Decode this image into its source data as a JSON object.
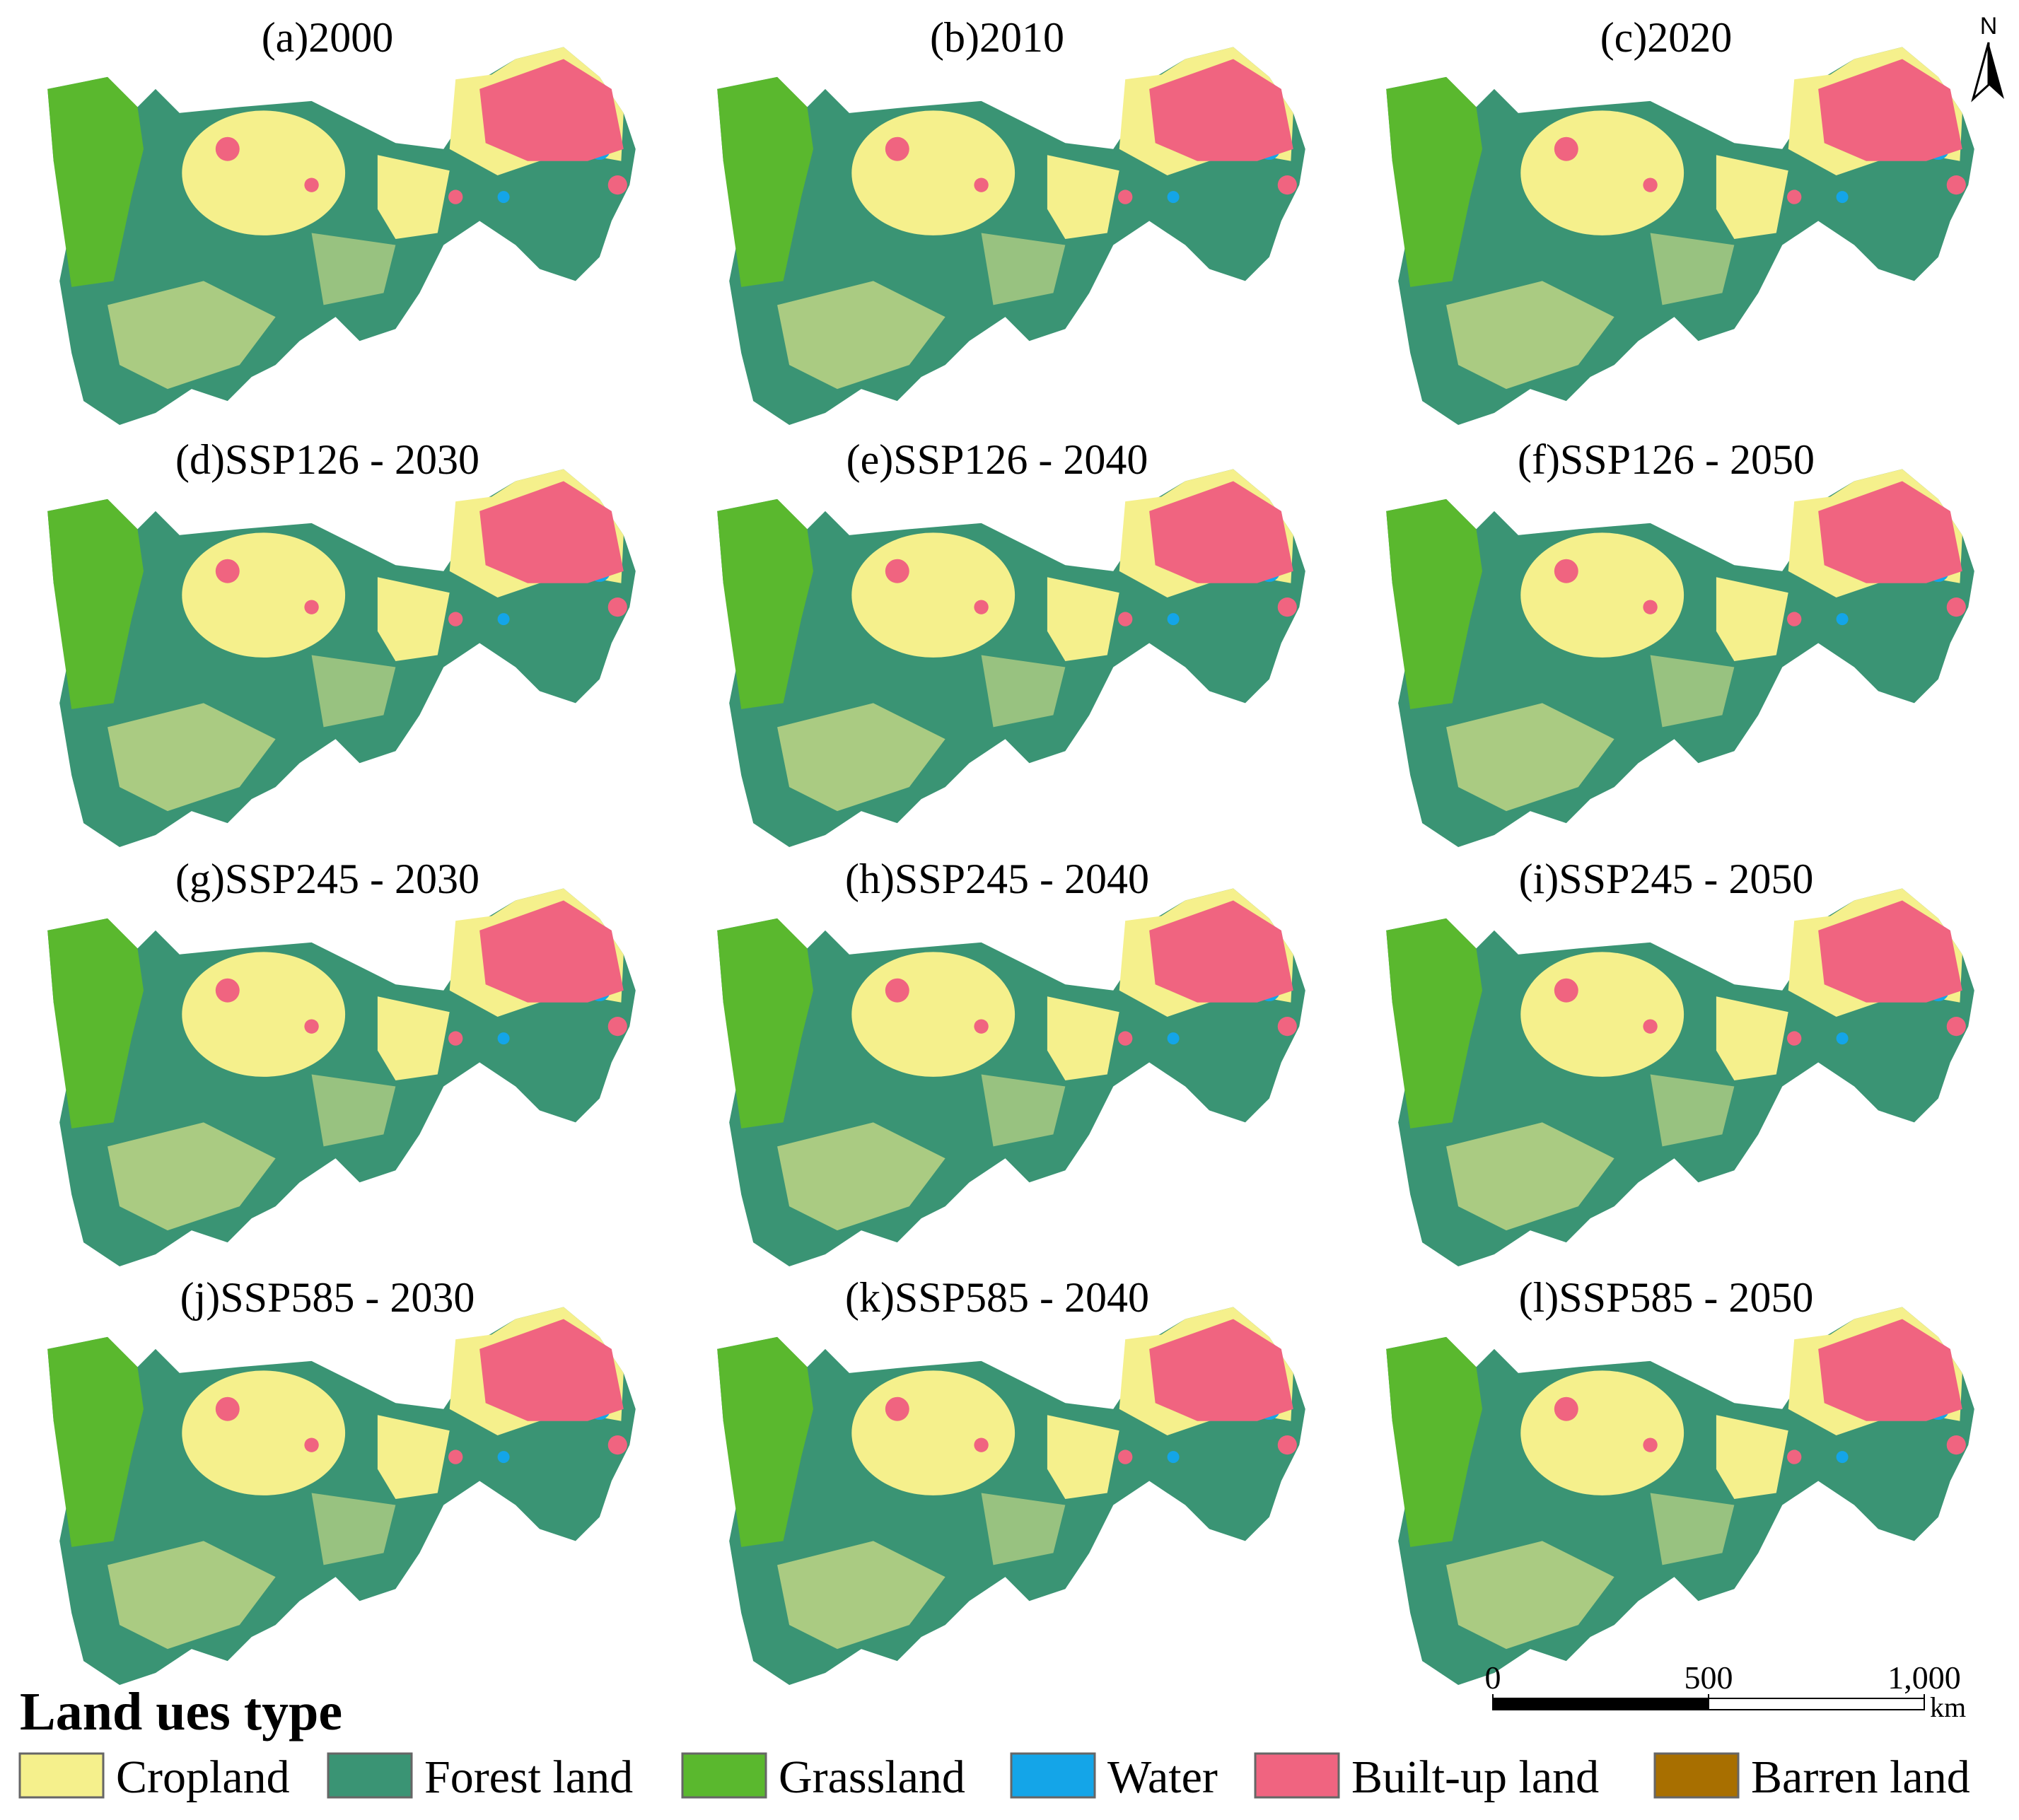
{
  "panels": [
    {
      "title": "(a)2000"
    },
    {
      "title": "(b)2010"
    },
    {
      "title": "(c)2020"
    },
    {
      "title": "(d)SSP126 - 2030"
    },
    {
      "title": "(e)SSP126 - 2040"
    },
    {
      "title": "(f)SSP126 - 2050"
    },
    {
      "title": "(g)SSP245 - 2030"
    },
    {
      "title": "(h)SSP245 - 2040"
    },
    {
      "title": "(i)SSP245 - 2050"
    },
    {
      "title": "(j)SSP585 - 2030"
    },
    {
      "title": "(k)SSP585 - 2040"
    },
    {
      "title": "(l)SSP585 - 2050"
    }
  ],
  "north_arrow": {
    "label": "N"
  },
  "scale_bar": {
    "ticks": [
      0,
      500,
      {
        "value": 1000,
        "label": "1,000"
      }
    ],
    "unit": "km"
  },
  "legend": {
    "title": "Land ues type",
    "items": [
      {
        "name": "Cropland",
        "color": "#f5f08c"
      },
      {
        "name": "Forest land",
        "color": "#3a9474"
      },
      {
        "name": "Grassland",
        "color": "#5ab82e"
      },
      {
        "name": "Water",
        "color": "#14a5e8"
      },
      {
        "name": "Built-up land",
        "color": "#f06480"
      },
      {
        "name": "Barren land",
        "color": "#a86f00"
      }
    ]
  }
}
